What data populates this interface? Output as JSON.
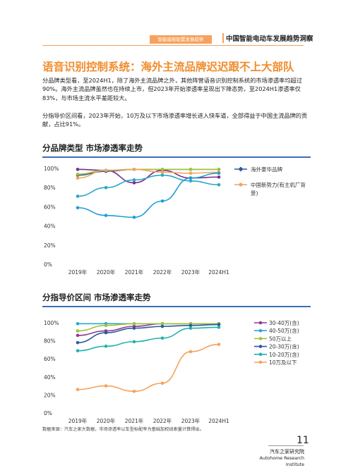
{
  "header": {
    "tab": "智能座舱配置发展趋势",
    "title": "中国智能电动车发展趋势洞察"
  },
  "page_title": "语音识别控制系统：海外主流品牌迟迟跟不上大部队",
  "paragraphs": [
    "分品牌类型看，至2024H1，除了海外主流品牌之外，其他阵营语音识别控制系统的市场渗透率均超过90%。海外主流品牌虽然也在持续上市，但2023年开始渗透率呈现出下降态势，至2024H1渗透率仅83%，与市场主流水平差距较大。",
    "分指导价区间看，2023年开始，10万及以下市场渗透率增长进入快车道，全部得益于中国主流品牌的贡献，占比91%。"
  ],
  "section1": "分品牌类型  市场渗透率走势",
  "section2": "分指导价区间  市场渗透率走势",
  "footnote": "数据来源：汽车之家大数据，市场渗透率以车型标配率为基础加权线索量计算得出。",
  "page_number": "11",
  "institute": {
    "cn": "汽车之家研究院",
    "en": "Autohome Research Institute"
  },
  "chart_data": [
    {
      "type": "line",
      "x": [
        "2019年",
        "2020年",
        "2021年",
        "2022年",
        "2023年",
        "2024H1"
      ],
      "yticks": [
        "0%",
        "20%",
        "40%",
        "60%",
        "80%",
        "100%"
      ],
      "ylim": [
        0,
        100
      ],
      "series": [
        {
          "name": "",
          "color": "#7a2e8e",
          "values": [
            99,
            98,
            85,
            98,
            90,
            91
          ]
        },
        {
          "name": "海外豪华品牌",
          "color": "#2c5aa0",
          "values": [
            93,
            97,
            99,
            99,
            99,
            99
          ]
        },
        {
          "name": "",
          "color": "#a3c23a",
          "values": [
            94,
            98,
            99,
            99,
            99,
            99
          ]
        },
        {
          "name": "",
          "color": "#f0a55a",
          "values": [
            90,
            98,
            99,
            96,
            95,
            96
          ]
        },
        {
          "name": "",
          "color": "#2aa7c7",
          "values": [
            71,
            80,
            88,
            93,
            87,
            83
          ]
        },
        {
          "name": "",
          "color": "#1e9ed8",
          "values": [
            59,
            51,
            49,
            66,
            90,
            95
          ]
        }
      ],
      "legend": [
        {
          "label": "海外豪华品牌",
          "color": "#2c5aa0",
          "marker": "diamond"
        },
        {
          "label": "中国新势力(有主机厂背景)",
          "color": "#f5a25d",
          "marker": "circle"
        }
      ]
    },
    {
      "type": "line",
      "x": [
        "2019年",
        "2020年",
        "2021年",
        "2022年",
        "2023年",
        "2024H1"
      ],
      "yticks": [
        "0%",
        "20%",
        "40%",
        "60%",
        "80%",
        "100%"
      ],
      "ylim": [
        0,
        100
      ],
      "series": [
        {
          "name": "30-40万(含)",
          "color": "#8e3a8e",
          "values": [
            86,
            91,
            96,
            99,
            99,
            99
          ]
        },
        {
          "name": "40-50万(含)",
          "color": "#2aa7d8",
          "values": [
            99,
            99,
            99,
            99,
            99,
            99
          ]
        },
        {
          "name": "50万以上",
          "color": "#a3c23a",
          "values": [
            91,
            97,
            99,
            99,
            99,
            99
          ]
        },
        {
          "name": "20-30万(含)",
          "color": "#2c5aa0",
          "values": [
            78,
            89,
            94,
            96,
            97,
            98
          ]
        },
        {
          "name": "10-20万(含)",
          "color": "#20b2aa",
          "values": [
            69,
            74,
            79,
            83,
            94,
            95
          ]
        },
        {
          "name": "10万及以下",
          "color": "#f5a25d",
          "values": [
            26,
            30,
            24,
            33,
            68,
            76
          ]
        }
      ]
    }
  ]
}
